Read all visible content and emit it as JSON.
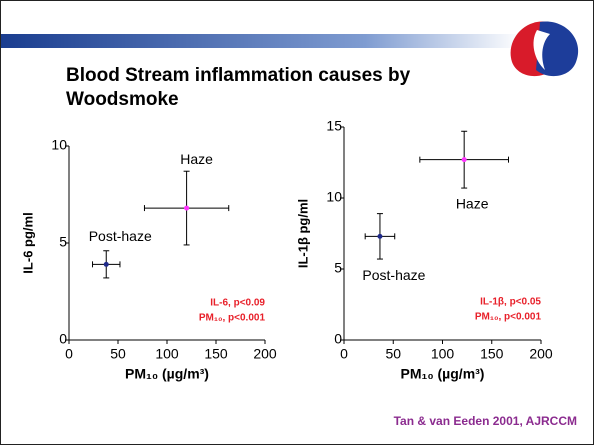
{
  "slide": {
    "title": "Blood Stream inflammation causes by Woodsmoke",
    "citation": "Tan  & van Eeden 2001, AJRCCM"
  },
  "chart_data": [
    {
      "type": "scatter",
      "xlabel": "PM₁₀ (µg/m³)",
      "ylabel": "IL-6 pg/ml",
      "xlim": [
        0,
        200
      ],
      "xticks": [
        0,
        50,
        100,
        150,
        200
      ],
      "ylim": [
        0,
        10
      ],
      "yticks": [
        0,
        5,
        10
      ],
      "series": [
        {
          "name": "Post-haze",
          "color": "#1f2a8a",
          "x": [
            38
          ],
          "values": [
            3.9
          ],
          "xerr": [
            14
          ],
          "yerr": [
            0.7
          ]
        },
        {
          "name": "Haze",
          "color": "#ff33ff",
          "x": [
            120
          ],
          "values": [
            6.8
          ],
          "xerr": [
            43
          ],
          "yerr": [
            1.9
          ]
        }
      ],
      "annotations": [
        "IL-6, p<0.09",
        "PM₁₀, p<0.001"
      ]
    },
    {
      "type": "scatter",
      "xlabel": "PM₁₀ (µg/m³)",
      "ylabel": "IL-1β pg/ml",
      "xlim": [
        0,
        200
      ],
      "xticks": [
        0,
        50,
        100,
        150,
        200
      ],
      "ylim": [
        0,
        15
      ],
      "yticks": [
        0,
        5,
        10,
        15
      ],
      "series": [
        {
          "name": "Post-haze",
          "color": "#1f2a8a",
          "x": [
            36.5
          ],
          "values": [
            7.3
          ],
          "xerr": [
            15
          ],
          "yerr": [
            1.6
          ]
        },
        {
          "name": "Haze",
          "color": "#ff33ff",
          "x": [
            122
          ],
          "values": [
            12.7
          ],
          "xerr": [
            45
          ],
          "yerr": [
            2
          ]
        }
      ],
      "annotations": [
        "IL-1β, p<0.05",
        "PM₁₀, p<0.001"
      ]
    }
  ]
}
